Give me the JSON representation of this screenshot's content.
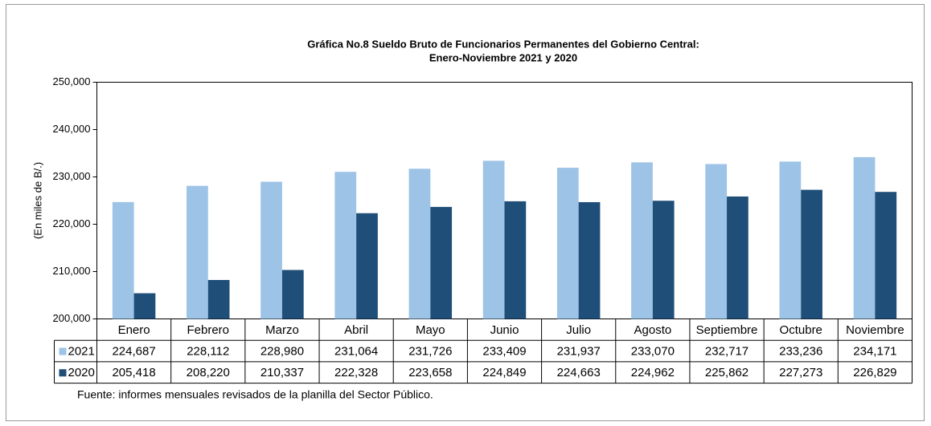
{
  "chart_data": {
    "type": "bar",
    "title": [
      "Gráfica No.8 Sueldo Bruto de Funcionarios Permanentes del Gobierno Central:",
      "Enero-Noviembre  2021 y 2020"
    ],
    "ylabel": "(En miles de B/.)",
    "source": "Fuente: informes mensuales revisados de la planilla del Sector Público.",
    "categories": [
      "Enero",
      "Febrero",
      "Marzo",
      "Abril",
      "Mayo",
      "Junio",
      "Julio",
      "Agosto",
      "Septiembre",
      "Octubre",
      "Noviembre"
    ],
    "series": [
      {
        "name": "2021",
        "color": "#9dc3e6",
        "values": [
          224687,
          228112,
          228980,
          231064,
          231726,
          233409,
          231937,
          233070,
          232717,
          233236,
          234171
        ],
        "value_labels": [
          "224,687",
          "228,112",
          "228,980",
          "231,064",
          "231,726",
          "233,409",
          "231,937",
          "233,070",
          "232,717",
          "233,236",
          "234,171"
        ]
      },
      {
        "name": "2020",
        "color": "#1f4e79",
        "values": [
          205418,
          208220,
          210337,
          222328,
          223658,
          224849,
          224663,
          224962,
          225862,
          227273,
          226829
        ],
        "value_labels": [
          "205,418",
          "208,220",
          "210,337",
          "222,328",
          "223,658",
          "224,849",
          "224,663",
          "224,962",
          "225,862",
          "227,273",
          "226,829"
        ]
      }
    ],
    "ylim": [
      200000,
      250000
    ],
    "yticks": [
      {
        "value": 200000,
        "label": "200,000"
      },
      {
        "value": 210000,
        "label": "210,000"
      },
      {
        "value": 220000,
        "label": "220,000"
      },
      {
        "value": 230000,
        "label": "230,000"
      },
      {
        "value": 240000,
        "label": "240,000"
      },
      {
        "value": 250000,
        "label": "250,000"
      }
    ],
    "grid": false
  }
}
